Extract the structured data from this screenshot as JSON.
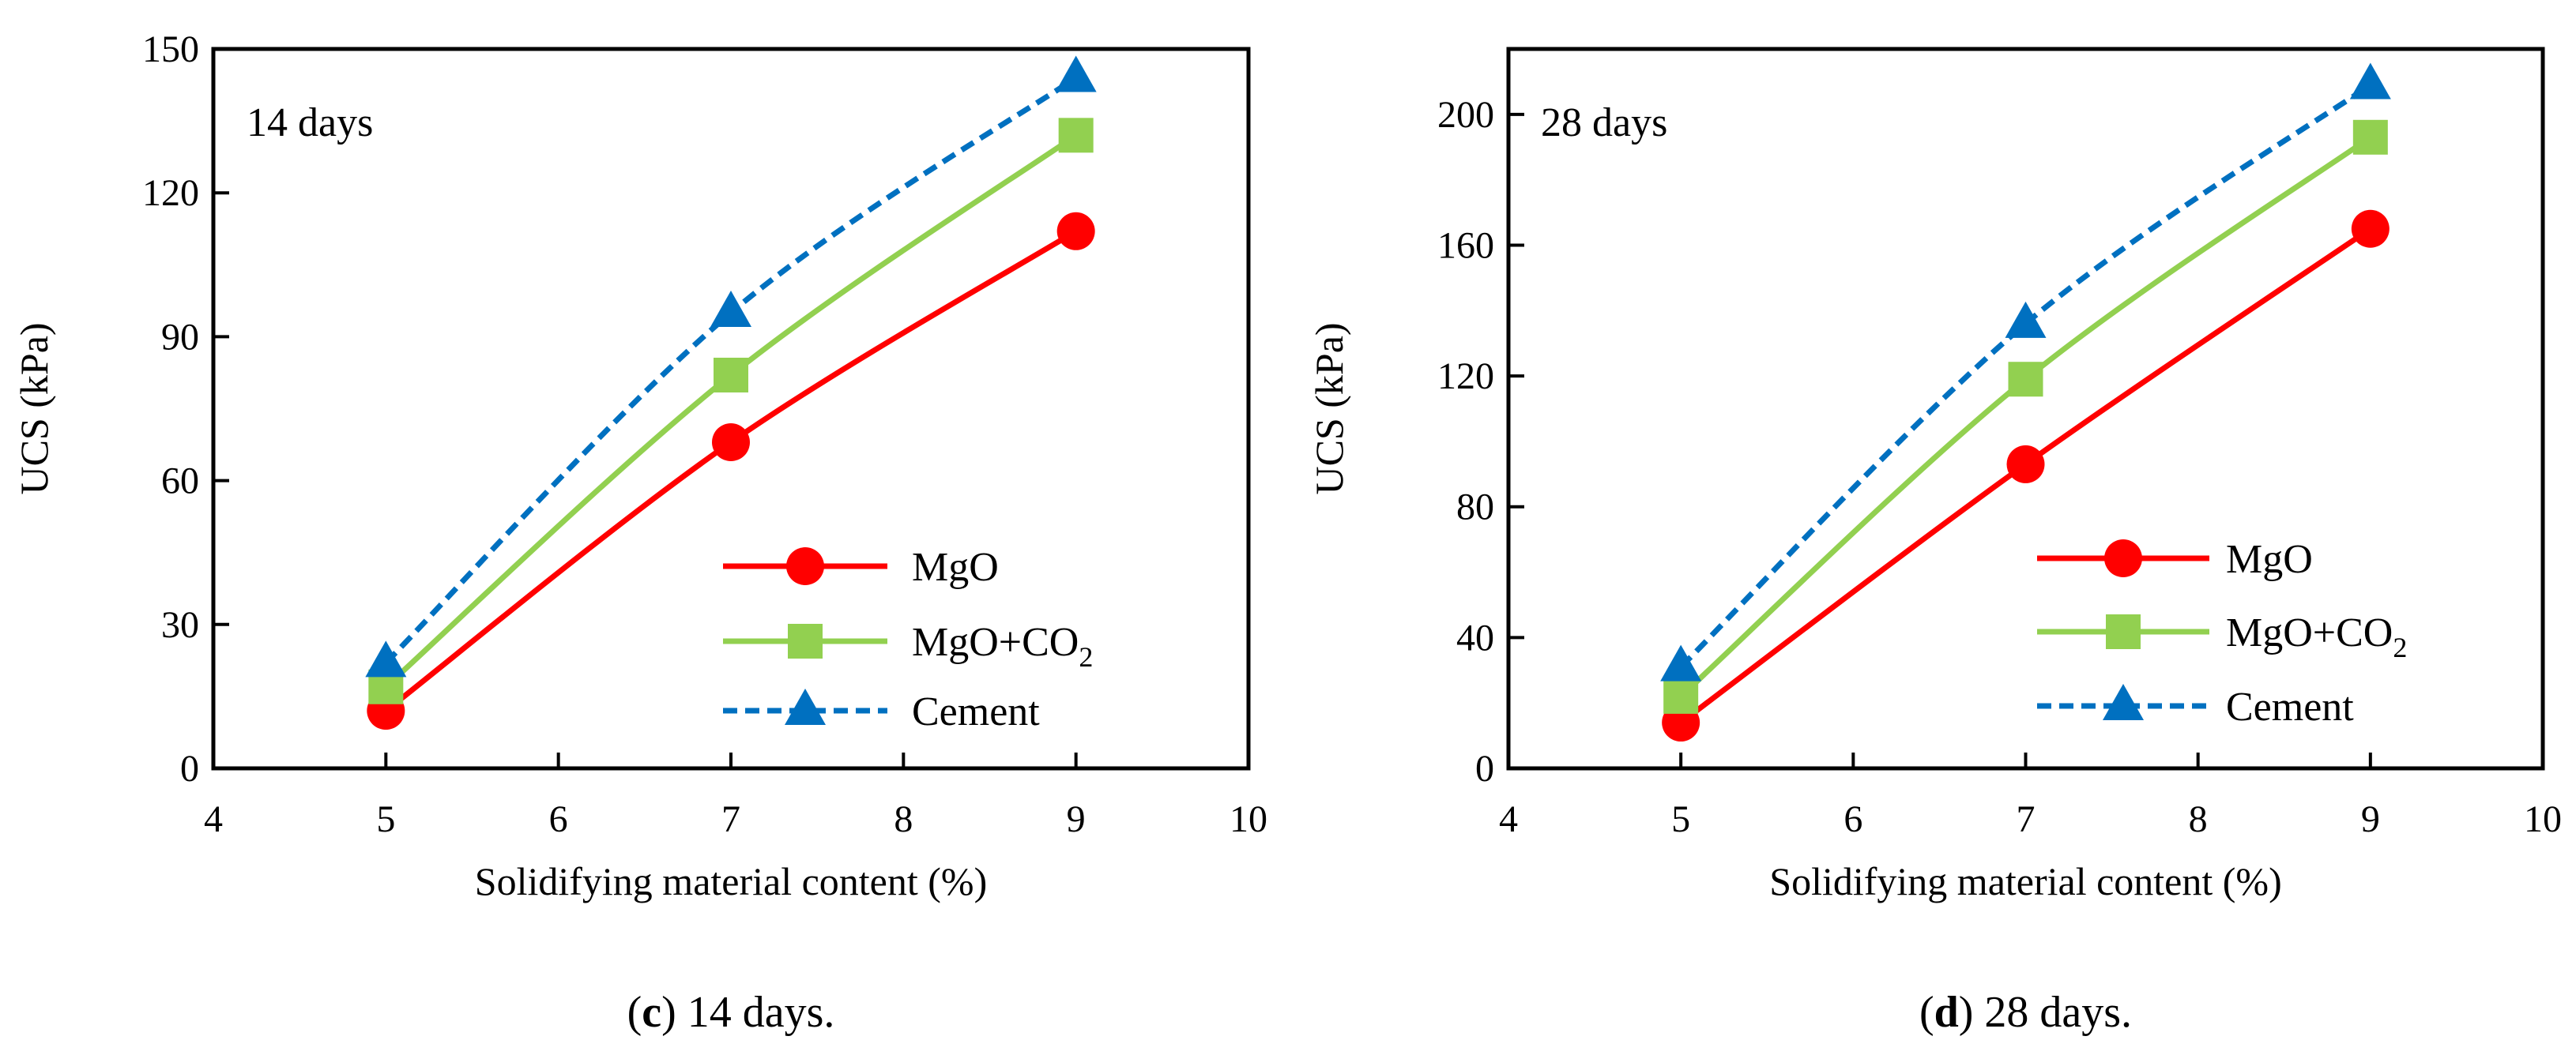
{
  "colors": {
    "MgO": "#ff0000",
    "MgO+CO2": "#92d050",
    "Cement": "#0070c0"
  },
  "chart_data": [
    {
      "type": "line",
      "id": "c",
      "annotation": "14 days",
      "caption_letter": "c",
      "caption_text": " 14 days.",
      "xlabel": "Solidifying material content (%)",
      "ylabel": "UCS (kPa)",
      "xlim": [
        4,
        10
      ],
      "ylim": [
        0,
        150
      ],
      "xticks": [
        4,
        5,
        6,
        7,
        8,
        9,
        10
      ],
      "yticks": [
        0,
        30,
        60,
        90,
        120,
        150
      ],
      "legend_position": "bottom-right",
      "x": [
        5,
        7,
        9
      ],
      "series": [
        {
          "name": "MgO",
          "label_main": "MgO",
          "label_sub": "",
          "marker": "circle",
          "dash": false,
          "values": [
            12,
            68,
            112
          ]
        },
        {
          "name": "MgO+CO2",
          "label_main": "MgO+CO",
          "label_sub": "2",
          "marker": "square",
          "dash": false,
          "values": [
            17,
            82,
            132
          ]
        },
        {
          "name": "Cement",
          "label_main": "Cement",
          "label_sub": "",
          "marker": "triangle",
          "dash": true,
          "values": [
            22,
            95,
            144
          ]
        }
      ]
    },
    {
      "type": "line",
      "id": "d",
      "annotation": "28 days",
      "caption_letter": "d",
      "caption_text": " 28 days.",
      "xlabel": "Solidifying material content (%)",
      "ylabel": "UCS (kPa)",
      "xlim": [
        4,
        10
      ],
      "ylim": [
        0,
        220
      ],
      "xticks": [
        4,
        5,
        6,
        7,
        8,
        9,
        10
      ],
      "yticks": [
        0,
        40,
        80,
        120,
        160,
        200
      ],
      "legend_position": "bottom-right",
      "x": [
        5,
        7,
        9
      ],
      "series": [
        {
          "name": "MgO",
          "label_main": "MgO",
          "label_sub": "",
          "marker": "circle",
          "dash": false,
          "values": [
            14,
            93,
            165
          ]
        },
        {
          "name": "MgO+CO2",
          "label_main": "MgO+CO",
          "label_sub": "2",
          "marker": "square",
          "dash": false,
          "values": [
            22,
            119,
            193
          ]
        },
        {
          "name": "Cement",
          "label_main": "Cement",
          "label_sub": "",
          "marker": "triangle",
          "dash": true,
          "values": [
            31,
            136,
            209
          ]
        }
      ]
    }
  ]
}
